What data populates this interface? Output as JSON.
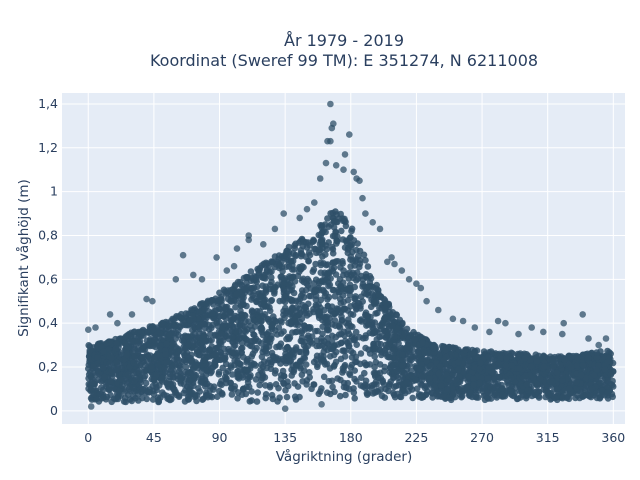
{
  "chart_data": {
    "type": "scatter",
    "title_line1": "År 1979 - 2019",
    "title_line2": "Koordinat (Sweref 99 TM): E 351274, N 6211008",
    "xlabel": "Vågriktning (grader)",
    "ylabel": "Signifikant våghöjd (m)",
    "xlim": [
      -18,
      368
    ],
    "ylim": [
      -0.06,
      1.45
    ],
    "xticks": [
      0,
      45,
      90,
      135,
      180,
      225,
      270,
      315,
      360
    ],
    "xtick_labels": [
      "0",
      "45",
      "90",
      "135",
      "180",
      "225",
      "270",
      "315",
      "360"
    ],
    "yticks": [
      0,
      0.2,
      0.4,
      0.6,
      0.8,
      1.0,
      1.2,
      1.4
    ],
    "ytick_labels": [
      "0",
      "0,2",
      "0,4",
      "0,6",
      "0,8",
      "1",
      "1,2",
      "1,4"
    ],
    "grid": true,
    "colors": {
      "marker": "#2f5068",
      "plot_background": "#e5ecf6",
      "grid": "#ffffff",
      "text": "#2a3f5f"
    },
    "envelope": {
      "direction": [
        0,
        10,
        20,
        30,
        40,
        50,
        60,
        70,
        80,
        90,
        100,
        110,
        120,
        130,
        140,
        150,
        160,
        165,
        170,
        180,
        190,
        200,
        210,
        220,
        230,
        240,
        260,
        280,
        300,
        320,
        340,
        360
      ],
      "upper_height": [
        0.3,
        0.31,
        0.33,
        0.36,
        0.38,
        0.4,
        0.43,
        0.46,
        0.5,
        0.54,
        0.58,
        0.63,
        0.68,
        0.72,
        0.76,
        0.8,
        0.86,
        0.9,
        0.92,
        0.85,
        0.7,
        0.55,
        0.45,
        0.38,
        0.33,
        0.3,
        0.28,
        0.27,
        0.26,
        0.25,
        0.26,
        0.28
      ],
      "lower_height": [
        0.04,
        0.04,
        0.04,
        0.04,
        0.04,
        0.04,
        0.04,
        0.04,
        0.04,
        0.04,
        0.04,
        0.04,
        0.04,
        0.04,
        0.04,
        0.04,
        0.05,
        0.05,
        0.05,
        0.05,
        0.04,
        0.04,
        0.05,
        0.05,
        0.05,
        0.05,
        0.05,
        0.05,
        0.05,
        0.05,
        0.05,
        0.05
      ]
    },
    "outliers": [
      {
        "x": 166,
        "y": 1.4
      },
      {
        "x": 168,
        "y": 1.31
      },
      {
        "x": 167,
        "y": 1.29
      },
      {
        "x": 164,
        "y": 1.23
      },
      {
        "x": 166,
        "y": 1.23
      },
      {
        "x": 179,
        "y": 1.26
      },
      {
        "x": 176,
        "y": 1.17
      },
      {
        "x": 170,
        "y": 1.12
      },
      {
        "x": 163,
        "y": 1.13
      },
      {
        "x": 182,
        "y": 1.09
      },
      {
        "x": 184,
        "y": 1.06
      },
      {
        "x": 175,
        "y": 1.1
      },
      {
        "x": 159,
        "y": 1.06
      },
      {
        "x": 186,
        "y": 1.05
      },
      {
        "x": 134,
        "y": 0.9
      },
      {
        "x": 188,
        "y": 0.97
      },
      {
        "x": 110,
        "y": 0.8
      },
      {
        "x": 110,
        "y": 0.78
      },
      {
        "x": 102,
        "y": 0.74
      },
      {
        "x": 65,
        "y": 0.71
      },
      {
        "x": 88,
        "y": 0.7
      },
      {
        "x": 200,
        "y": 0.83
      },
      {
        "x": 208,
        "y": 0.7
      },
      {
        "x": 210,
        "y": 0.67
      },
      {
        "x": 225,
        "y": 0.58
      },
      {
        "x": 228,
        "y": 0.56
      },
      {
        "x": 250,
        "y": 0.42
      },
      {
        "x": 257,
        "y": 0.41
      },
      {
        "x": 281,
        "y": 0.41
      },
      {
        "x": 286,
        "y": 0.4
      },
      {
        "x": 304,
        "y": 0.38
      },
      {
        "x": 312,
        "y": 0.36
      },
      {
        "x": 326,
        "y": 0.4
      },
      {
        "x": 339,
        "y": 0.44
      },
      {
        "x": 325,
        "y": 0.35
      },
      {
        "x": 343,
        "y": 0.33
      },
      {
        "x": 40,
        "y": 0.51
      },
      {
        "x": 44,
        "y": 0.5
      },
      {
        "x": 30,
        "y": 0.44
      },
      {
        "x": 15,
        "y": 0.44
      },
      {
        "x": 5,
        "y": 0.38
      },
      {
        "x": 0,
        "y": 0.37
      },
      {
        "x": 20,
        "y": 0.4
      },
      {
        "x": 60,
        "y": 0.6
      },
      {
        "x": 72,
        "y": 0.62
      },
      {
        "x": 78,
        "y": 0.6
      },
      {
        "x": 95,
        "y": 0.64
      },
      {
        "x": 100,
        "y": 0.66
      },
      {
        "x": 120,
        "y": 0.76
      },
      {
        "x": 128,
        "y": 0.83
      },
      {
        "x": 145,
        "y": 0.88
      },
      {
        "x": 150,
        "y": 0.92
      },
      {
        "x": 155,
        "y": 0.95
      },
      {
        "x": 190,
        "y": 0.9
      },
      {
        "x": 195,
        "y": 0.86
      },
      {
        "x": 205,
        "y": 0.68
      },
      {
        "x": 215,
        "y": 0.64
      },
      {
        "x": 220,
        "y": 0.6
      },
      {
        "x": 232,
        "y": 0.5
      },
      {
        "x": 240,
        "y": 0.46
      },
      {
        "x": 265,
        "y": 0.38
      },
      {
        "x": 275,
        "y": 0.36
      },
      {
        "x": 295,
        "y": 0.35
      },
      {
        "x": 355,
        "y": 0.33
      },
      {
        "x": 350,
        "y": 0.3
      },
      {
        "x": 2,
        "y": 0.02
      },
      {
        "x": 135,
        "y": 0.01
      },
      {
        "x": 160,
        "y": 0.03
      }
    ]
  }
}
